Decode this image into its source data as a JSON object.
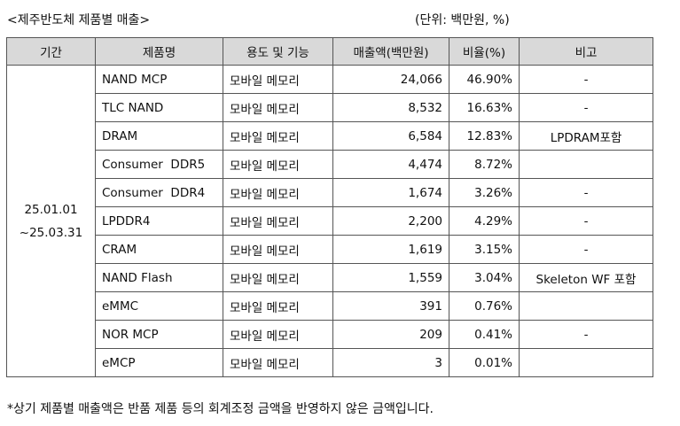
{
  "caption_title": "<제주반도체 제품별 매출>",
  "caption_unit": "(단위: 백만원, %)",
  "columns": [
    "기간",
    "제품명",
    "용도 및 기능",
    "매출액(백만원)",
    "비율(%)",
    "비고"
  ],
  "period_line1": "25.01.01",
  "period_line2": "~25.03.31",
  "rows": [
    {
      "product": "NAND MCP",
      "usage": "모바일 메모리",
      "sales": "24,066",
      "ratio": "46.90%",
      "note": "-"
    },
    {
      "product": "TLC NAND",
      "usage": "모바일 메모리",
      "sales": "8,532",
      "ratio": "16.63%",
      "note": "-"
    },
    {
      "product": "DRAM",
      "usage": "모바일 메모리",
      "sales": "6,584",
      "ratio": "12.83%",
      "note": "LPDRAM포함"
    },
    {
      "product": "Consumer  DDR5",
      "usage": "모바일 메모리",
      "sales": "4,474",
      "ratio": "8.72%",
      "note": ""
    },
    {
      "product": "Consumer  DDR4",
      "usage": "모바일 메모리",
      "sales": "1,674",
      "ratio": "3.26%",
      "note": "-"
    },
    {
      "product": "LPDDR4",
      "usage": "모바일 메모리",
      "sales": "2,200",
      "ratio": "4.29%",
      "note": "-"
    },
    {
      "product": "CRAM",
      "usage": "모바일 메모리",
      "sales": "1,619",
      "ratio": "3.15%",
      "note": "-"
    },
    {
      "product": "NAND Flash",
      "usage": "모바일 메모리",
      "sales": "1,559",
      "ratio": "3.04%",
      "note": "Skeleton WF 포함"
    },
    {
      "product": "eMMC",
      "usage": "모바일 메모리",
      "sales": "391",
      "ratio": "0.76%",
      "note": ""
    },
    {
      "product": "NOR MCP",
      "usage": "모바일 메모리",
      "sales": "209",
      "ratio": "0.41%",
      "note": "-"
    },
    {
      "product": "eMCP",
      "usage": "모바일 메모리",
      "sales": "3",
      "ratio": "0.01%",
      "note": ""
    }
  ],
  "footnote": "*상기 제품별 매출액은 반품 제품 등의 회계조정 금액을 반영하지 않은 금액입니다."
}
